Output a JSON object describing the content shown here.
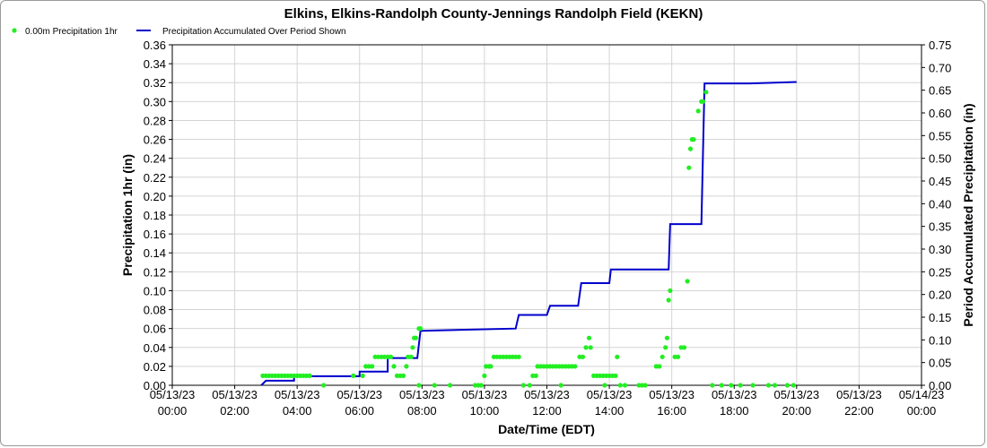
{
  "chart_data": {
    "type": "line",
    "title": "Elkins, Elkins-Randolph County-Jennings Randolph Field (KEKN)",
    "xlabel": "Date/Time (EDT)",
    "ylabel_left": "Precipitation 1hr (in)",
    "ylabel_right": "Period Accumulated Precipitation (in)",
    "ylim_left": [
      0,
      0.36
    ],
    "ylim_right": [
      0,
      0.75
    ],
    "xlim_hours": [
      0,
      24
    ],
    "grid": true,
    "legend_position": "top-left",
    "yticks_left": [
      "0.00",
      "0.02",
      "0.04",
      "0.06",
      "0.08",
      "0.10",
      "0.12",
      "0.14",
      "0.16",
      "0.18",
      "0.20",
      "0.22",
      "0.24",
      "0.26",
      "0.28",
      "0.30",
      "0.32",
      "0.34",
      "0.36"
    ],
    "yticks_right": [
      "0.00",
      "0.05",
      "0.10",
      "0.15",
      "0.20",
      "0.25",
      "0.30",
      "0.35",
      "0.40",
      "0.45",
      "0.50",
      "0.55",
      "0.60",
      "0.65",
      "0.70",
      "0.75"
    ],
    "xticks": [
      {
        "date": "05/13/23",
        "time": "00:00"
      },
      {
        "date": "05/13/23",
        "time": "02:00"
      },
      {
        "date": "05/13/23",
        "time": "04:00"
      },
      {
        "date": "05/13/23",
        "time": "06:00"
      },
      {
        "date": "05/13/23",
        "time": "08:00"
      },
      {
        "date": "05/13/23",
        "time": "10:00"
      },
      {
        "date": "05/13/23",
        "time": "12:00"
      },
      {
        "date": "05/13/23",
        "time": "14:00"
      },
      {
        "date": "05/13/23",
        "time": "16:00"
      },
      {
        "date": "05/13/23",
        "time": "18:00"
      },
      {
        "date": "05/13/23",
        "time": "20:00"
      },
      {
        "date": "05/13/23",
        "time": "22:00"
      },
      {
        "date": "05/14/23",
        "time": "00:00"
      }
    ],
    "series": [
      {
        "name": "0.00m Precipitation 1hr",
        "axis": "left",
        "style": "points",
        "color": "#22ee22",
        "points": [
          [
            2.9,
            0.01
          ],
          [
            3.0,
            0.01
          ],
          [
            3.1,
            0.01
          ],
          [
            3.2,
            0.01
          ],
          [
            3.3,
            0.01
          ],
          [
            3.4,
            0.01
          ],
          [
            3.5,
            0.01
          ],
          [
            3.6,
            0.01
          ],
          [
            3.7,
            0.01
          ],
          [
            3.8,
            0.01
          ],
          [
            3.9,
            0.01
          ],
          [
            4.0,
            0.01
          ],
          [
            4.1,
            0.01
          ],
          [
            4.2,
            0.01
          ],
          [
            4.3,
            0.01
          ],
          [
            4.4,
            0.01
          ],
          [
            4.85,
            0.0
          ],
          [
            5.8,
            0.01
          ],
          [
            6.1,
            0.01
          ],
          [
            6.2,
            0.02
          ],
          [
            6.3,
            0.02
          ],
          [
            6.4,
            0.02
          ],
          [
            6.5,
            0.03
          ],
          [
            6.6,
            0.03
          ],
          [
            6.7,
            0.03
          ],
          [
            6.8,
            0.03
          ],
          [
            6.9,
            0.03
          ],
          [
            7.0,
            0.03
          ],
          [
            7.1,
            0.02
          ],
          [
            7.2,
            0.01
          ],
          [
            7.3,
            0.01
          ],
          [
            7.4,
            0.01
          ],
          [
            7.5,
            0.02
          ],
          [
            7.55,
            0.03
          ],
          [
            7.65,
            0.03
          ],
          [
            7.7,
            0.04
          ],
          [
            7.75,
            0.05
          ],
          [
            7.8,
            0.05
          ],
          [
            7.9,
            0.06
          ],
          [
            7.95,
            0.06
          ],
          [
            7.9,
            0.0
          ],
          [
            8.4,
            0.0
          ],
          [
            8.9,
            0.0
          ],
          [
            9.7,
            0.0
          ],
          [
            9.8,
            0.0
          ],
          [
            9.9,
            0.0
          ],
          [
            10.0,
            0.01
          ],
          [
            10.05,
            0.02
          ],
          [
            10.15,
            0.02
          ],
          [
            10.2,
            0.02
          ],
          [
            10.3,
            0.03
          ],
          [
            10.4,
            0.03
          ],
          [
            10.5,
            0.03
          ],
          [
            10.6,
            0.03
          ],
          [
            10.7,
            0.03
          ],
          [
            10.8,
            0.03
          ],
          [
            10.9,
            0.03
          ],
          [
            11.0,
            0.03
          ],
          [
            11.1,
            0.03
          ],
          [
            11.25,
            0.0
          ],
          [
            11.45,
            0.0
          ],
          [
            11.55,
            0.01
          ],
          [
            11.65,
            0.01
          ],
          [
            11.7,
            0.02
          ],
          [
            11.8,
            0.02
          ],
          [
            11.9,
            0.02
          ],
          [
            12.0,
            0.02
          ],
          [
            12.1,
            0.02
          ],
          [
            12.2,
            0.02
          ],
          [
            12.3,
            0.02
          ],
          [
            12.4,
            0.02
          ],
          [
            12.5,
            0.02
          ],
          [
            12.6,
            0.02
          ],
          [
            12.7,
            0.02
          ],
          [
            12.8,
            0.02
          ],
          [
            12.9,
            0.02
          ],
          [
            12.45,
            0.0
          ],
          [
            13.05,
            0.03
          ],
          [
            13.15,
            0.03
          ],
          [
            13.25,
            0.04
          ],
          [
            13.35,
            0.05
          ],
          [
            13.4,
            0.04
          ],
          [
            13.5,
            0.01
          ],
          [
            13.6,
            0.01
          ],
          [
            13.7,
            0.01
          ],
          [
            13.8,
            0.01
          ],
          [
            13.9,
            0.01
          ],
          [
            14.0,
            0.01
          ],
          [
            14.1,
            0.01
          ],
          [
            14.2,
            0.01
          ],
          [
            13.85,
            0.0
          ],
          [
            14.25,
            0.03
          ],
          [
            14.35,
            0.0
          ],
          [
            14.5,
            0.0
          ],
          [
            14.95,
            0.0
          ],
          [
            15.05,
            0.0
          ],
          [
            15.15,
            0.0
          ],
          [
            15.5,
            0.02
          ],
          [
            15.6,
            0.02
          ],
          [
            15.7,
            0.03
          ],
          [
            15.8,
            0.04
          ],
          [
            15.85,
            0.05
          ],
          [
            15.9,
            0.09
          ],
          [
            15.95,
            0.1
          ],
          [
            16.1,
            0.03
          ],
          [
            16.2,
            0.03
          ],
          [
            16.3,
            0.04
          ],
          [
            16.4,
            0.04
          ],
          [
            16.5,
            0.11
          ],
          [
            16.55,
            0.23
          ],
          [
            16.6,
            0.25
          ],
          [
            16.65,
            0.26
          ],
          [
            16.7,
            0.26
          ],
          [
            16.85,
            0.29
          ],
          [
            16.95,
            0.3
          ],
          [
            17.0,
            0.3
          ],
          [
            17.1,
            0.31
          ],
          [
            17.3,
            0.0
          ],
          [
            17.6,
            0.0
          ],
          [
            17.9,
            0.0
          ],
          [
            18.2,
            0.0
          ],
          [
            18.6,
            0.0
          ],
          [
            19.1,
            0.0
          ],
          [
            19.3,
            0.0
          ],
          [
            19.7,
            0.0
          ],
          [
            19.9,
            0.0
          ]
        ]
      },
      {
        "name": "Precipitation Accumulated Over Period Shown",
        "axis": "right",
        "style": "step-line",
        "color": "#0000cc",
        "points": [
          [
            2.85,
            0.0
          ],
          [
            3.0,
            0.01
          ],
          [
            3.9,
            0.01
          ],
          [
            3.9,
            0.02
          ],
          [
            6.0,
            0.02
          ],
          [
            6.0,
            0.03
          ],
          [
            6.9,
            0.03
          ],
          [
            6.9,
            0.06
          ],
          [
            7.85,
            0.06
          ],
          [
            7.95,
            0.12
          ],
          [
            11.0,
            0.125
          ],
          [
            11.1,
            0.155
          ],
          [
            12.0,
            0.155
          ],
          [
            12.1,
            0.175
          ],
          [
            13.0,
            0.175
          ],
          [
            13.1,
            0.225
          ],
          [
            14.0,
            0.225
          ],
          [
            14.05,
            0.255
          ],
          [
            15.9,
            0.255
          ],
          [
            15.95,
            0.355
          ],
          [
            16.95,
            0.355
          ],
          [
            17.05,
            0.665
          ],
          [
            18.5,
            0.665
          ],
          [
            20.0,
            0.668
          ]
        ]
      }
    ]
  }
}
